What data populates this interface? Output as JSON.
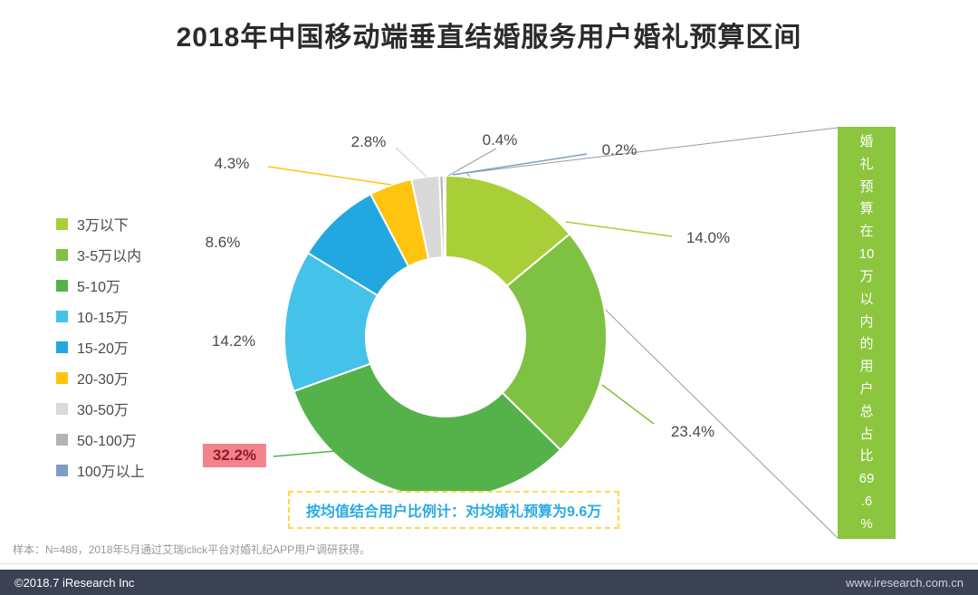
{
  "title": "2018年中国移动端垂直结婚服务用户婚礼预算区间",
  "chart_data": {
    "type": "pie",
    "subtype": "donut",
    "title": "2018年中国移动端垂直结婚服务用户婚礼预算区间",
    "unit": "%",
    "legend_position": "left",
    "series": [
      {
        "label": "3万以下",
        "value": 14.0,
        "display": "14.0%",
        "color": "#A9CF38"
      },
      {
        "label": "3-5万以内",
        "value": 23.4,
        "display": "23.4%",
        "color": "#7FC243"
      },
      {
        "label": "5-10万",
        "value": 32.2,
        "display": "32.2%",
        "color": "#55B24B",
        "highlighted": true
      },
      {
        "label": "10-15万",
        "value": 14.2,
        "display": "14.2%",
        "color": "#45C2E9"
      },
      {
        "label": "15-20万",
        "value": 8.6,
        "display": "8.6%",
        "color": "#22A7E0"
      },
      {
        "label": "20-30万",
        "value": 4.3,
        "display": "4.3%",
        "color": "#FFC410"
      },
      {
        "label": "30-50万",
        "value": 2.8,
        "display": "2.8%",
        "color": "#D9D9D9"
      },
      {
        "label": "50-100万",
        "value": 0.4,
        "display": "0.4%",
        "color": "#B3B3B3"
      },
      {
        "label": "100万以上",
        "value": 0.2,
        "display": "0.2%",
        "color": "#7F9DC4"
      }
    ],
    "annotations": [
      "按均值结合用户比例计：对均婚礼预算为9.6万",
      "婚礼预算在10万以内的用户总占比69.6%"
    ]
  },
  "highlight": {
    "bg": "#F2838C",
    "text_color": "#8E1C2E"
  },
  "callout": {
    "full_text": "婚礼预算在10万以内的用户总占比69.6%",
    "text_chars": [
      "婚",
      "礼",
      "预",
      "算",
      "在",
      "10",
      "万",
      "以",
      "内",
      "的",
      "用",
      "户",
      "总",
      "占",
      "比",
      "69",
      ".6",
      "%"
    ],
    "bg_color": "#8CC63F"
  },
  "annotation": {
    "text": "按均值结合用户比例计：对均婚礼预算为9.6万",
    "text_color": "#29ABE2",
    "border_color": "#FFD94C"
  },
  "footnote": "样本：N=488，2018年5月通过艾瑞iclick平台对婚礼纪APP用户调研获得。",
  "footer": {
    "left": "©2018.7 iResearch Inc",
    "right": "www.iresearch.com.cn",
    "bg_color": "#3A4254"
  }
}
